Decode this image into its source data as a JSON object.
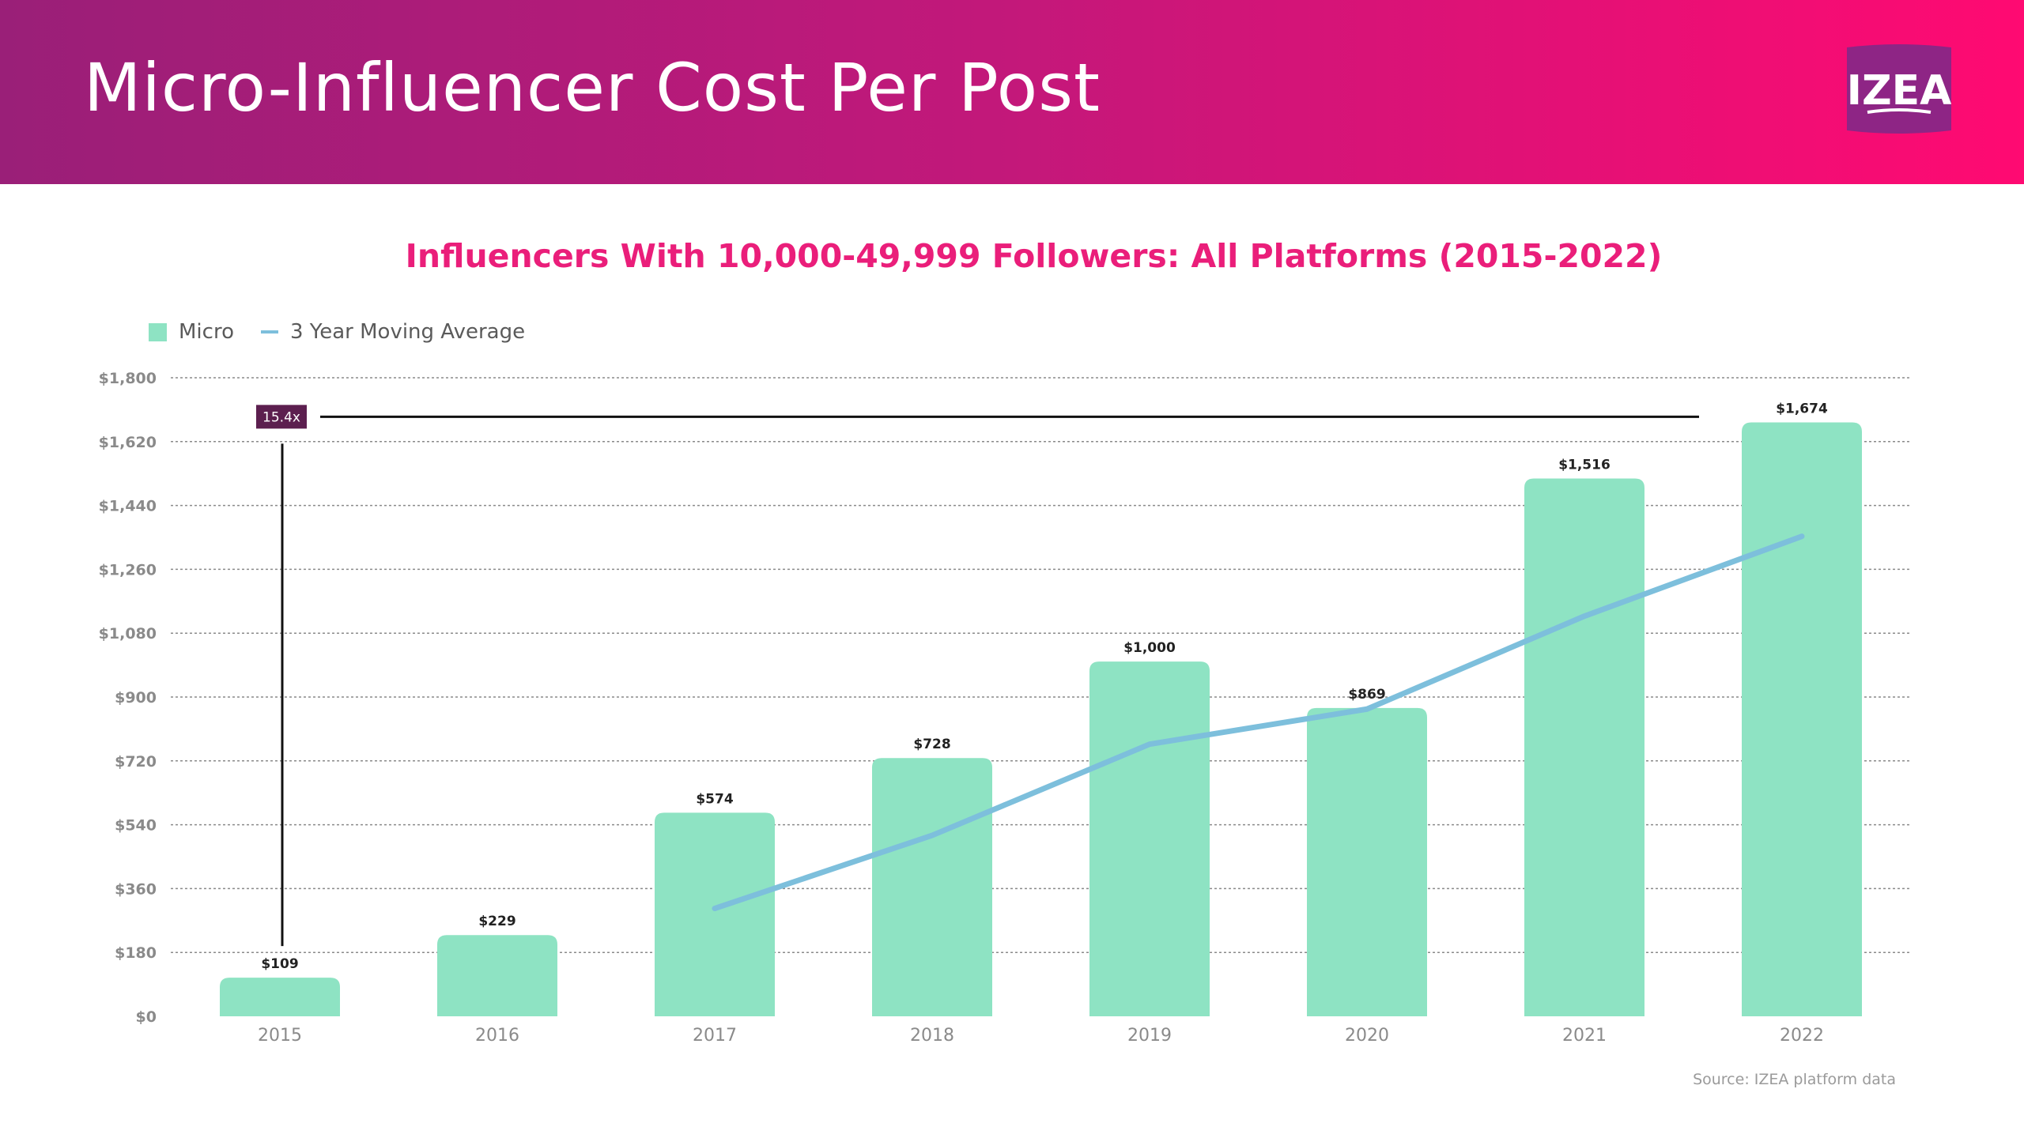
{
  "header": {
    "title": "Micro-Influencer Cost Per Post",
    "logo_text": "IZEA"
  },
  "colors": {
    "bar": "#8ee3c3",
    "line": "#7dbfdc",
    "title": "#ea1e7a",
    "annotation_box": "#5c1f4f"
  },
  "chart_data": {
    "type": "bar",
    "title": "Influencers With 10,000-49,999 Followers: All Platforms (2015-2022)",
    "xlabel": "",
    "ylabel": "",
    "ylim": [
      0,
      1800
    ],
    "grid": true,
    "legend_position": "top-left",
    "legend": {
      "bar_label": "Micro",
      "line_label": "3 Year Moving Average"
    },
    "categories": [
      "2015",
      "2016",
      "2017",
      "2018",
      "2019",
      "2020",
      "2021",
      "2022"
    ],
    "y_ticks": [
      0,
      180,
      360,
      540,
      720,
      900,
      1080,
      1260,
      1440,
      1620,
      1800
    ],
    "y_tick_labels": [
      "$0",
      "$180",
      "$360",
      "$540",
      "$720",
      "$900",
      "$1,080",
      "$1,260",
      "$1,440",
      "$1,620",
      "$1,800"
    ],
    "series": [
      {
        "name": "Micro",
        "type": "bar",
        "values": [
          109,
          229,
          574,
          728,
          1000,
          869,
          1516,
          1674
        ],
        "labels": [
          "$109",
          "$229",
          "$574",
          "$728",
          "$1,000",
          "$869",
          "$1,516",
          "$1,674"
        ]
      },
      {
        "name": "3 Year Moving Average",
        "type": "line",
        "values": [
          null,
          null,
          304,
          510,
          767,
          866,
          1128,
          1353
        ]
      }
    ],
    "annotation": {
      "label": "15.4x",
      "from_category": "2015",
      "to_category": "2022",
      "level_value": 1690
    },
    "source": "Source: IZEA platform data"
  }
}
